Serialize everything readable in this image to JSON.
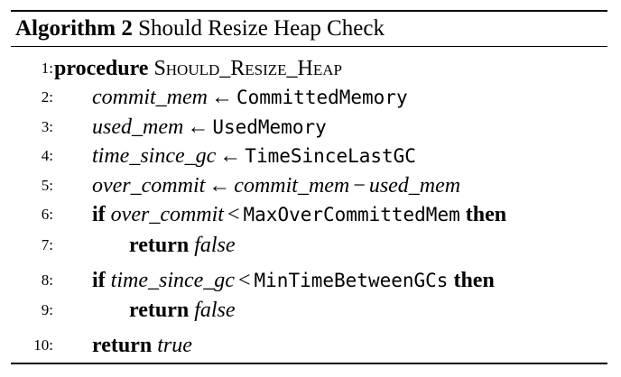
{
  "caption": {
    "label": "Algorithm 2",
    "title": "Should Resize Heap Check"
  },
  "lines": [
    {
      "num": "1:",
      "keyword": "procedure",
      "proc_name": "Should_Resize_Heap"
    },
    {
      "num": "2:",
      "var": "commit_mem",
      "arrow": "←",
      "fn": "CommittedMemory"
    },
    {
      "num": "3:",
      "var": "used_mem",
      "arrow": "←",
      "fn": "UsedMemory"
    },
    {
      "num": "4:",
      "var": "time_since_gc",
      "arrow": "←",
      "fn": "TimeSinceLastGC"
    },
    {
      "num": "5:",
      "var": "over_commit",
      "arrow": "←",
      "lhs": "commit_mem",
      "minus": "−",
      "rhs": "used_mem"
    },
    {
      "num": "6:",
      "if": "if",
      "var": "over_commit",
      "lt": "<",
      "fn": "MaxOverCommittedMem",
      "then": "then"
    },
    {
      "num": "7:",
      "keyword": "return",
      "value": "false"
    },
    {
      "num": "8:",
      "if": "if",
      "var": "time_since_gc",
      "lt": "<",
      "fn": "MinTimeBetweenGCs",
      "then": "then"
    },
    {
      "num": "9:",
      "keyword": "return",
      "value": "false"
    },
    {
      "num": "10:",
      "keyword": "return",
      "value": "true"
    }
  ]
}
